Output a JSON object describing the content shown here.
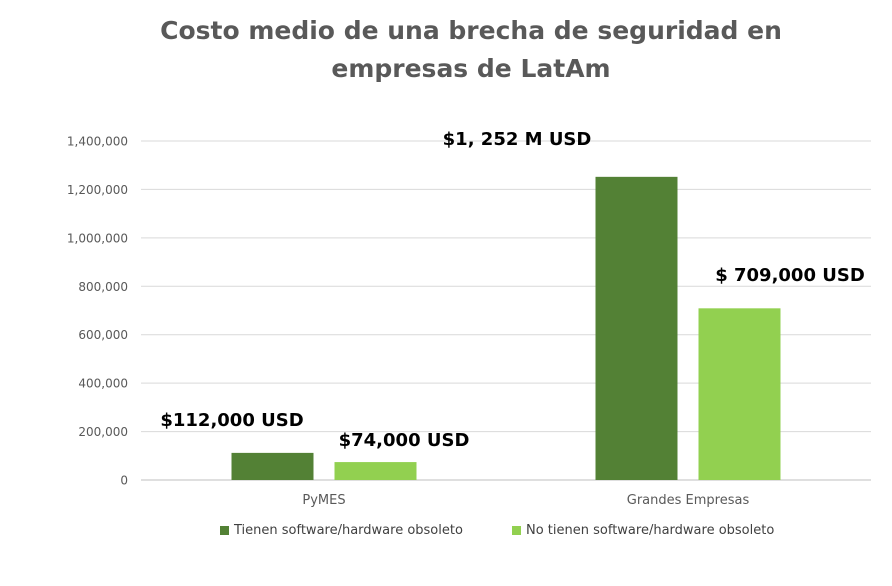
{
  "chart_data": {
    "type": "bar",
    "title": [
      "Costo medio de una brecha de seguridad en",
      "empresas de LatAm"
    ],
    "categories": [
      "PyMES",
      "Grandes Empresas"
    ],
    "series": [
      {
        "name": "Tienen software/hardware obsoleto",
        "color": "#538135",
        "values": [
          112000,
          1252000
        ],
        "data_labels": [
          "$112,000 USD",
          "$1, 252 M USD"
        ]
      },
      {
        "name": "No tienen software/hardware obsoleto",
        "color": "#92D050",
        "values": [
          74000,
          709000
        ],
        "data_labels": [
          "$74,000 USD",
          "$ 709,000 USD"
        ]
      }
    ],
    "ylim": [
      0,
      1400000
    ],
    "yticks": [
      0,
      200000,
      400000,
      600000,
      800000,
      1000000,
      1200000,
      1400000
    ],
    "ytick_labels": [
      "0",
      "200,000",
      "400,000",
      "600,000",
      "800,000",
      "1,000,000",
      "1,200,000",
      "1,400,000"
    ],
    "xlabel": "",
    "ylabel": "",
    "grid": true,
    "legend_position": "bottom"
  }
}
